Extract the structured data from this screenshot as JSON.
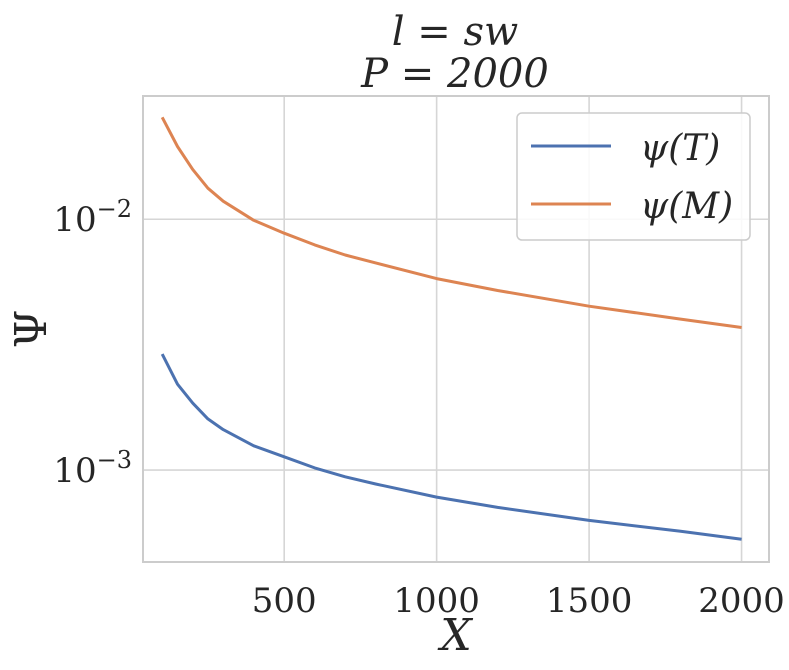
{
  "chart_data": {
    "type": "line",
    "title_lines": [
      "l = sw",
      "P = 2000"
    ],
    "xlabel": "X",
    "ylabel": "Ψ",
    "xlim": [
      37,
      2090
    ],
    "ylim": [
      0.00043,
      0.031
    ],
    "yscale": "log",
    "xticks": [
      500,
      1000,
      1500,
      2000
    ],
    "xtick_labels": [
      "500",
      "1000",
      "1500",
      "2000"
    ],
    "yticks": [
      0.001,
      0.01
    ],
    "ytick_labels": [
      {
        "base": "10",
        "exp": "−3"
      },
      {
        "base": "10",
        "exp": "−2"
      }
    ],
    "grid": true,
    "legend_position": "top-right",
    "series": [
      {
        "name": "ψ(T)",
        "color": "#4c72b0",
        "x": [
          100,
          150,
          200,
          250,
          300,
          400,
          500,
          600,
          700,
          800,
          1000,
          1200,
          1500,
          1800,
          2000
        ],
        "y": [
          0.0029,
          0.0022,
          0.00185,
          0.0016,
          0.00145,
          0.00125,
          0.00113,
          0.00102,
          0.00094,
          0.00088,
          0.00078,
          0.00071,
          0.00063,
          0.00057,
          0.00053
        ]
      },
      {
        "name": "ψ(M)",
        "color": "#dd8452",
        "x": [
          100,
          150,
          200,
          250,
          300,
          400,
          500,
          600,
          700,
          800,
          1000,
          1200,
          1500,
          1800,
          2000
        ],
        "y": [
          0.0255,
          0.0195,
          0.0158,
          0.0133,
          0.0118,
          0.0099,
          0.0088,
          0.0079,
          0.0072,
          0.0067,
          0.0058,
          0.0052,
          0.0045,
          0.004,
          0.0037
        ]
      }
    ]
  }
}
